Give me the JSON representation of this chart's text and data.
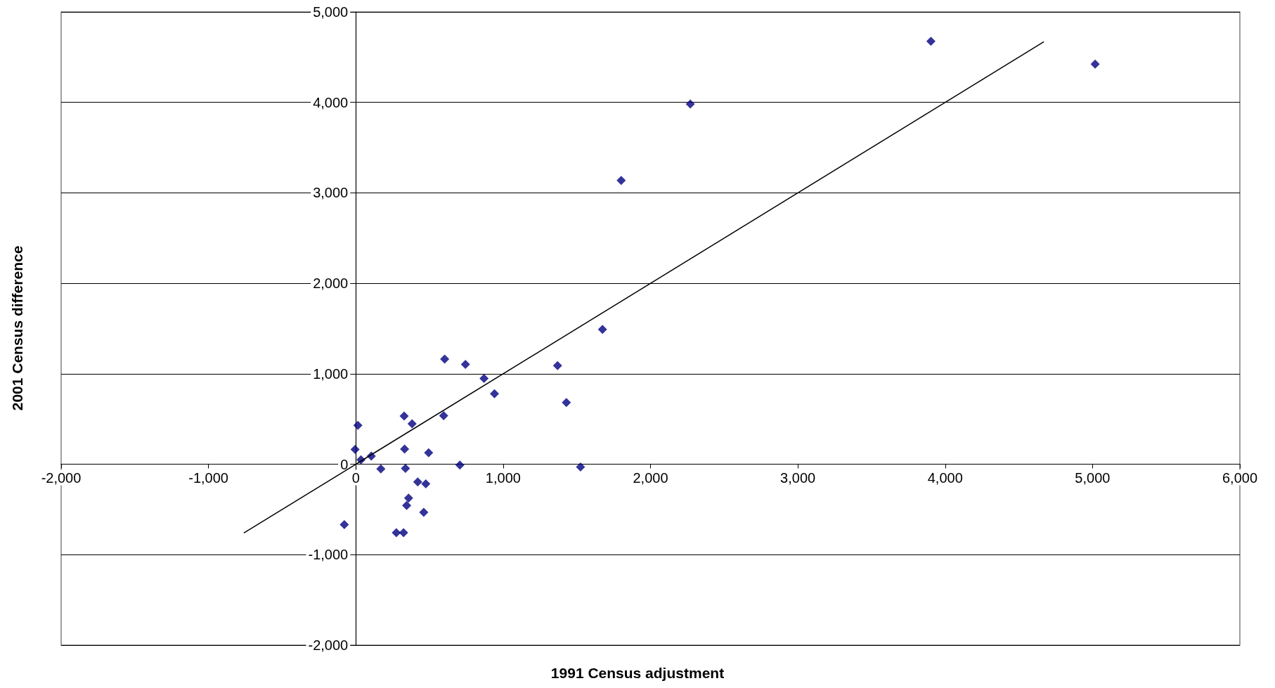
{
  "chart_data": {
    "type": "scatter",
    "xlabel": "1991 Census adjustment",
    "ylabel": "2001 Census difference",
    "xlim": [
      -2000,
      6000
    ],
    "ylim": [
      -2000,
      5000
    ],
    "xticks": [
      {
        "value": -2000,
        "label": "-2,000"
      },
      {
        "value": -1000,
        "label": "-1,000"
      },
      0,
      {
        "value": 1000,
        "label": "1,000"
      },
      {
        "value": 2000,
        "label": "2,000"
      },
      {
        "value": 3000,
        "label": "3,000"
      },
      {
        "value": 4000,
        "label": "4,000"
      },
      {
        "value": 5000,
        "label": "5,000"
      },
      {
        "value": 6000,
        "label": "6,000"
      }
    ],
    "yticks": [
      {
        "value": -2000,
        "label": "-2,000"
      },
      {
        "value": -1000,
        "label": "-1,000"
      },
      0,
      {
        "value": 1000,
        "label": "1,000"
      },
      {
        "value": 2000,
        "label": "2,000"
      },
      {
        "value": 3000,
        "label": "3,000"
      },
      {
        "value": 4000,
        "label": "4,000"
      },
      {
        "value": 5000,
        "label": "5,000"
      }
    ],
    "grid": "y",
    "marker": "diamond",
    "series": [
      {
        "color": "#000080",
        "x": [
          603,
          744,
          1369,
          870,
          941,
          1429,
          328,
          596,
          382,
          14,
          -5,
          331,
          494,
          105,
          35,
          170,
          337,
          706,
          1525,
          420,
          475,
          358,
          345,
          461,
          -78,
          275,
          324,
          1674,
          1801,
          2270,
          3903,
          5018
        ],
        "values": [
          1163,
          1103,
          1090,
          948,
          780,
          682,
          532,
          537,
          447,
          429,
          163,
          168,
          127,
          90,
          49,
          -52,
          -47,
          -10,
          -31,
          -196,
          -217,
          -375,
          -455,
          -532,
          -667,
          -757,
          -757,
          1491,
          3138,
          3983,
          4676,
          4424
        ]
      },
      {
        "type": "line",
        "color": "#000000",
        "line_style": "solid",
        "marker": "none",
        "x": [
          -760,
          4670
        ],
        "values": [
          -760,
          4670
        ]
      }
    ]
  }
}
